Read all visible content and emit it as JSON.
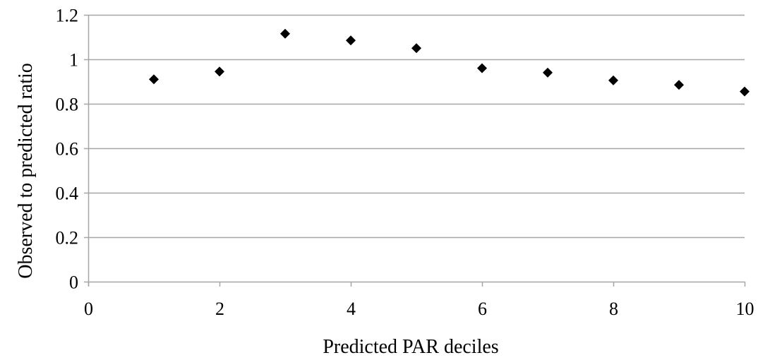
{
  "chart_data": {
    "type": "scatter",
    "title": "",
    "xlabel": "Predicted PAR deciles",
    "ylabel": "Observed to predicted ratio",
    "xlim": [
      0,
      10
    ],
    "ylim": [
      0,
      1.2
    ],
    "x_ticks": [
      "0",
      "2",
      "4",
      "6",
      "8",
      "10"
    ],
    "y_ticks": [
      "0",
      "0.2",
      "0.4",
      "0.6",
      "0.8",
      "1",
      "1.2"
    ],
    "x_tick_values": [
      0,
      2,
      4,
      6,
      8,
      10
    ],
    "y_tick_values": [
      0,
      0.2,
      0.4,
      0.6,
      0.8,
      1,
      1.2
    ],
    "grid": "horizontal",
    "marker": "diamond",
    "marker_color": "#000000",
    "gridline_color": "#a6a6a6",
    "axis_color": "#a6a6a6",
    "series": [
      {
        "x": [
          1,
          2,
          3,
          4,
          5,
          6,
          7,
          8,
          9,
          10
        ],
        "y": [
          0.91,
          0.945,
          1.115,
          1.085,
          1.05,
          0.96,
          0.94,
          0.905,
          0.885,
          0.855
        ]
      }
    ]
  }
}
